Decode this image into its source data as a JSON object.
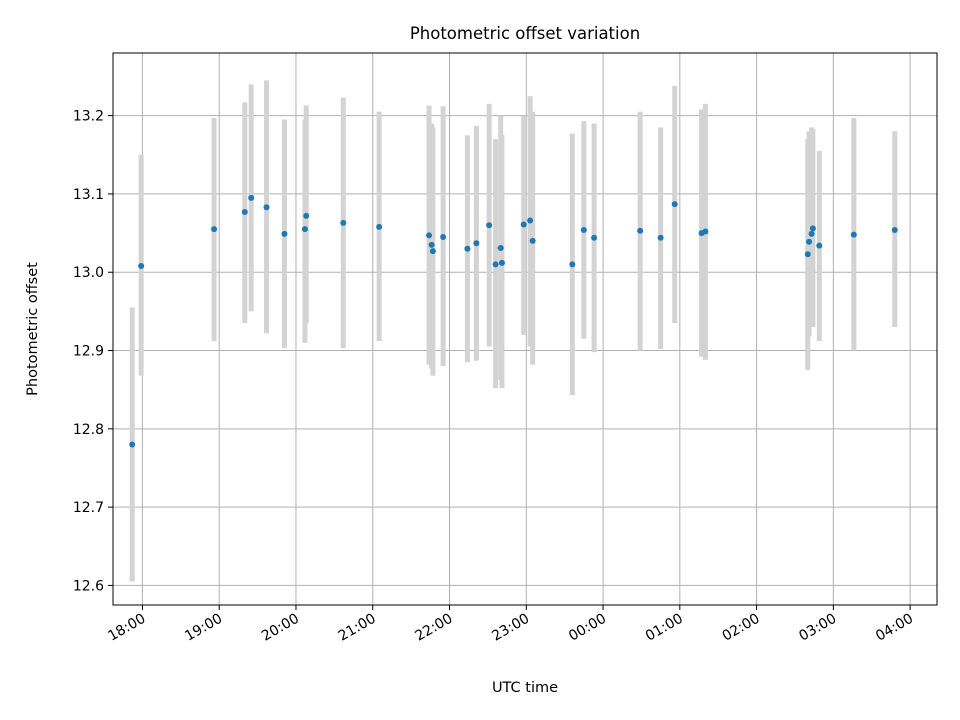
{
  "chart_data": {
    "type": "scatter",
    "title": "Photometric offset variation",
    "xlabel": "UTC time",
    "ylabel": "Photometric offset",
    "grid": true,
    "xlim": [
      "17:37",
      "04:21"
    ],
    "ylim": [
      12.575,
      13.28
    ],
    "xticks": [
      "18:00",
      "19:00",
      "20:00",
      "21:00",
      "22:00",
      "23:00",
      "00:00",
      "01:00",
      "02:00",
      "03:00",
      "04:00"
    ],
    "yticks": [
      "12.6",
      "12.7",
      "12.8",
      "12.9",
      "13.0",
      "13.1",
      "13.2"
    ],
    "errorbar_color": "#d3d3d3",
    "marker_color": "#1f77b4",
    "points": [
      {
        "t": "17:52",
        "y": 12.78,
        "lo": 12.605,
        "hi": 12.955
      },
      {
        "t": "17:59",
        "y": 13.008,
        "lo": 12.868,
        "hi": 13.15
      },
      {
        "t": "18:56",
        "y": 13.055,
        "lo": 12.912,
        "hi": 13.197
      },
      {
        "t": "19:20",
        "y": 13.077,
        "lo": 12.935,
        "hi": 13.217
      },
      {
        "t": "19:25",
        "y": 13.095,
        "lo": 12.95,
        "hi": 13.24
      },
      {
        "t": "19:37",
        "y": 13.083,
        "lo": 12.922,
        "hi": 13.245
      },
      {
        "t": "19:51",
        "y": 13.049,
        "lo": 12.903,
        "hi": 13.195
      },
      {
        "t": "20:07",
        "y": 13.055,
        "lo": 12.91,
        "hi": 13.195
      },
      {
        "t": "20:08",
        "y": 13.072,
        "lo": 12.935,
        "hi": 13.213
      },
      {
        "t": "20:37",
        "y": 13.063,
        "lo": 12.903,
        "hi": 13.223
      },
      {
        "t": "21:05",
        "y": 13.058,
        "lo": 12.912,
        "hi": 13.205
      },
      {
        "t": "21:44",
        "y": 13.047,
        "lo": 12.882,
        "hi": 13.213
      },
      {
        "t": "21:46",
        "y": 13.035,
        "lo": 12.877,
        "hi": 13.19
      },
      {
        "t": "21:47",
        "y": 13.027,
        "lo": 12.868,
        "hi": 13.185
      },
      {
        "t": "21:55",
        "y": 13.045,
        "lo": 12.88,
        "hi": 13.212
      },
      {
        "t": "22:14",
        "y": 13.03,
        "lo": 12.885,
        "hi": 13.175
      },
      {
        "t": "22:21",
        "y": 13.037,
        "lo": 12.887,
        "hi": 13.187
      },
      {
        "t": "22:31",
        "y": 13.06,
        "lo": 12.905,
        "hi": 13.215
      },
      {
        "t": "22:36",
        "y": 13.01,
        "lo": 12.852,
        "hi": 13.17
      },
      {
        "t": "22:40",
        "y": 13.031,
        "lo": 12.862,
        "hi": 13.2
      },
      {
        "t": "22:41",
        "y": 13.012,
        "lo": 12.852,
        "hi": 13.175
      },
      {
        "t": "22:58",
        "y": 13.061,
        "lo": 12.92,
        "hi": 13.2
      },
      {
        "t": "23:03",
        "y": 13.066,
        "lo": 12.905,
        "hi": 13.225
      },
      {
        "t": "23:05",
        "y": 13.04,
        "lo": 12.882,
        "hi": 13.205
      },
      {
        "t": "23:36",
        "y": 13.01,
        "lo": 12.843,
        "hi": 13.177
      },
      {
        "t": "23:45",
        "y": 13.054,
        "lo": 12.915,
        "hi": 13.193
      },
      {
        "t": "23:53",
        "y": 13.044,
        "lo": 12.898,
        "hi": 13.19
      },
      {
        "t": "00:29",
        "y": 13.053,
        "lo": 12.9,
        "hi": 13.205
      },
      {
        "t": "00:45",
        "y": 13.044,
        "lo": 12.902,
        "hi": 13.185
      },
      {
        "t": "00:56",
        "y": 13.087,
        "lo": 12.935,
        "hi": 13.238
      },
      {
        "t": "01:17",
        "y": 13.05,
        "lo": 12.892,
        "hi": 13.208
      },
      {
        "t": "01:20",
        "y": 13.052,
        "lo": 12.888,
        "hi": 13.215
      },
      {
        "t": "02:40",
        "y": 13.023,
        "lo": 12.875,
        "hi": 13.17
      },
      {
        "t": "02:41",
        "y": 13.039,
        "lo": 12.918,
        "hi": 13.18
      },
      {
        "t": "02:43",
        "y": 13.049,
        "lo": 12.93,
        "hi": 13.185
      },
      {
        "t": "02:44",
        "y": 13.056,
        "lo": 12.93,
        "hi": 13.183
      },
      {
        "t": "02:49",
        "y": 13.034,
        "lo": 12.912,
        "hi": 13.155
      },
      {
        "t": "03:16",
        "y": 13.048,
        "lo": 12.9,
        "hi": 13.197
      },
      {
        "t": "03:48",
        "y": 13.054,
        "lo": 12.93,
        "hi": 13.18
      }
    ]
  }
}
